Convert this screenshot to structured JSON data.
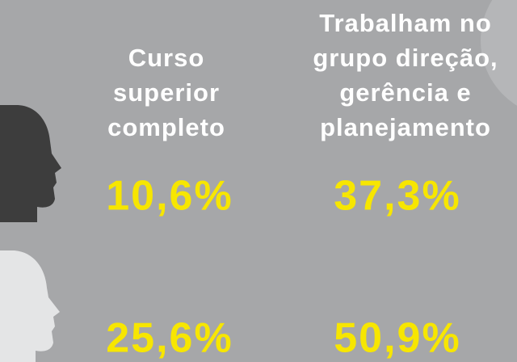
{
  "columns": [
    {
      "header": [
        "Curso",
        "superior",
        "completo"
      ]
    },
    {
      "header": [
        "Trabalham no",
        "grupo direção,",
        "gerência e",
        "planejamento"
      ]
    }
  ],
  "rows": [
    [
      "10,6%",
      "37,3%"
    ],
    [
      "25,6%",
      "50,9%"
    ]
  ]
}
